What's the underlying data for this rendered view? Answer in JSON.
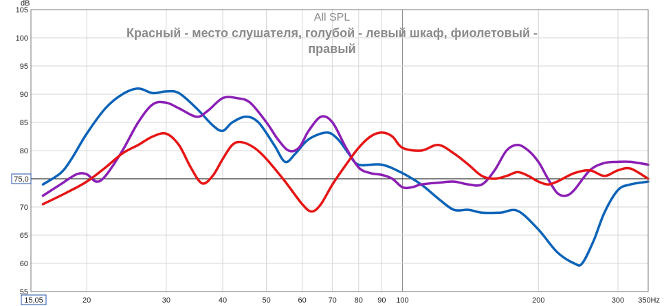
{
  "chart_data": {
    "type": "line",
    "title": "All SPL",
    "subtitle_lines": [
      "Красный - место слушателя, голубой - левый шкаф, фиолетовый -",
      "правый"
    ],
    "ylabel": "dB",
    "x_unit_label": "Hz",
    "x_scale": "log",
    "xlim": [
      15.05,
      350
    ],
    "ylim": [
      55,
      105
    ],
    "grid": true,
    "x_ticks": [
      {
        "value": 20,
        "label": "20"
      },
      {
        "value": 30,
        "label": "30"
      },
      {
        "value": 40,
        "label": "40"
      },
      {
        "value": 50,
        "label": "50"
      },
      {
        "value": 60,
        "label": "60"
      },
      {
        "value": 70,
        "label": "70"
      },
      {
        "value": 80,
        "label": "80"
      },
      {
        "value": 90,
        "label": "90"
      },
      {
        "value": 100,
        "label": "100"
      },
      {
        "value": 200,
        "label": "200"
      },
      {
        "value": 300,
        "label": "300"
      },
      {
        "value": 350,
        "label": "350Hz"
      }
    ],
    "x_start_label": "15,05",
    "y_ticks": [
      55,
      60,
      65,
      70,
      75,
      80,
      85,
      90,
      95,
      100,
      105
    ],
    "reference_line": {
      "value": 75.0,
      "label": "75,0"
    },
    "series": [
      {
        "color": "#0b63b8",
        "points": [
          [
            16,
            74
          ],
          [
            17.5,
            76
          ],
          [
            18.5,
            78.5
          ],
          [
            20,
            83
          ],
          [
            22,
            87.5
          ],
          [
            24,
            90
          ],
          [
            26,
            91
          ],
          [
            28,
            90.2
          ],
          [
            30,
            90.5
          ],
          [
            32,
            90.2
          ],
          [
            35,
            87.5
          ],
          [
            38,
            84.5
          ],
          [
            40,
            83.5
          ],
          [
            42,
            85
          ],
          [
            45,
            86
          ],
          [
            48,
            85
          ],
          [
            52,
            81
          ],
          [
            55,
            78
          ],
          [
            58,
            79.5
          ],
          [
            62,
            82
          ],
          [
            68,
            83.2
          ],
          [
            72,
            82
          ],
          [
            76,
            79.5
          ],
          [
            80,
            77.5
          ],
          [
            90,
            77.5
          ],
          [
            100,
            76
          ],
          [
            110,
            74
          ],
          [
            120,
            71.5
          ],
          [
            130,
            69.5
          ],
          [
            140,
            69.5
          ],
          [
            150,
            69
          ],
          [
            165,
            69
          ],
          [
            180,
            69.3
          ],
          [
            200,
            66
          ],
          [
            220,
            62
          ],
          [
            240,
            60
          ],
          [
            250,
            60
          ],
          [
            265,
            64
          ],
          [
            280,
            69
          ],
          [
            300,
            73
          ],
          [
            320,
            74
          ],
          [
            350,
            74.5
          ]
        ]
      },
      {
        "color": "#8b1fb5",
        "points": [
          [
            16,
            72
          ],
          [
            17.5,
            74
          ],
          [
            19,
            75.8
          ],
          [
            20,
            75.8
          ],
          [
            21,
            74.5
          ],
          [
            22,
            75.5
          ],
          [
            24,
            80
          ],
          [
            26,
            85
          ],
          [
            28,
            88.2
          ],
          [
            30,
            88.5
          ],
          [
            32,
            87.5
          ],
          [
            35,
            86
          ],
          [
            37,
            87
          ],
          [
            40,
            89.3
          ],
          [
            43,
            89.3
          ],
          [
            46,
            88.5
          ],
          [
            50,
            85
          ],
          [
            53,
            82
          ],
          [
            56,
            80
          ],
          [
            59,
            80.5
          ],
          [
            62,
            83.5
          ],
          [
            66,
            86
          ],
          [
            70,
            85
          ],
          [
            75,
            80.5
          ],
          [
            80,
            77
          ],
          [
            85,
            76
          ],
          [
            90,
            75.7
          ],
          [
            95,
            75
          ],
          [
            100,
            73.5
          ],
          [
            105,
            73.5
          ],
          [
            110,
            74
          ],
          [
            120,
            74.3
          ],
          [
            130,
            74.5
          ],
          [
            140,
            74
          ],
          [
            150,
            74
          ],
          [
            160,
            76.5
          ],
          [
            170,
            80
          ],
          [
            180,
            81
          ],
          [
            190,
            80
          ],
          [
            200,
            78
          ],
          [
            210,
            75
          ],
          [
            220,
            72.5
          ],
          [
            230,
            72
          ],
          [
            240,
            73
          ],
          [
            260,
            76.5
          ],
          [
            280,
            77.8
          ],
          [
            300,
            78
          ],
          [
            320,
            78
          ],
          [
            350,
            77.5
          ]
        ]
      },
      {
        "color": "#e61515",
        "points": [
          [
            16,
            70.5
          ],
          [
            18,
            72.5
          ],
          [
            20,
            74.5
          ],
          [
            22,
            77
          ],
          [
            24,
            79.5
          ],
          [
            26,
            81
          ],
          [
            28,
            82.5
          ],
          [
            30,
            83
          ],
          [
            32,
            81
          ],
          [
            34,
            77
          ],
          [
            36,
            74.2
          ],
          [
            38,
            75.5
          ],
          [
            40,
            78.5
          ],
          [
            42,
            81
          ],
          [
            44,
            81.5
          ],
          [
            47,
            80.5
          ],
          [
            50,
            78.5
          ],
          [
            55,
            74.5
          ],
          [
            60,
            70.5
          ],
          [
            63,
            69.2
          ],
          [
            66,
            70.5
          ],
          [
            70,
            74
          ],
          [
            75,
            77.5
          ],
          [
            80,
            80.5
          ],
          [
            85,
            82.5
          ],
          [
            90,
            83.2
          ],
          [
            95,
            82.5
          ],
          [
            100,
            80.5
          ],
          [
            110,
            80
          ],
          [
            120,
            81
          ],
          [
            130,
            79.5
          ],
          [
            140,
            77.5
          ],
          [
            150,
            75.5
          ],
          [
            160,
            75
          ],
          [
            170,
            75.5
          ],
          [
            180,
            76.2
          ],
          [
            190,
            75.5
          ],
          [
            200,
            74.5
          ],
          [
            210,
            74
          ],
          [
            220,
            74.5
          ],
          [
            240,
            76
          ],
          [
            260,
            76.5
          ],
          [
            280,
            75.5
          ],
          [
            300,
            76.5
          ],
          [
            320,
            76.8
          ],
          [
            350,
            75
          ]
        ]
      }
    ]
  }
}
